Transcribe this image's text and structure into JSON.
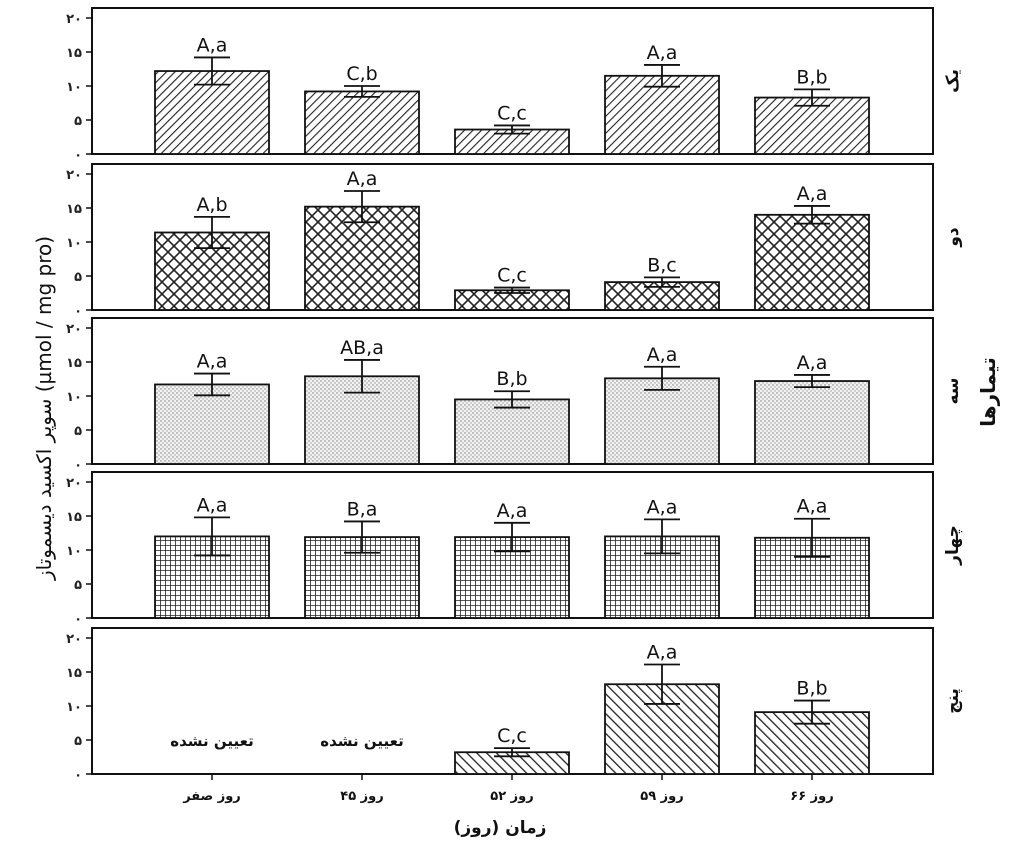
{
  "chart_data": {
    "type": "bar",
    "ylabel": "سوپر اکسید دیسموتاز (µmol / mg pro)",
    "xlabel": "زمان   (روز)",
    "group_label": "تیمارها",
    "categories": [
      "روز صفر",
      "روز ۴۵",
      "روز ۵۲",
      "روز ۵۹",
      "روز ۶۶"
    ],
    "yticks": [
      "۲۰",
      "۱۵",
      "۱۰",
      "۵",
      "۰"
    ],
    "ylim": [
      0,
      20
    ],
    "panels": [
      {
        "name": "یک",
        "pattern": "diag-fine",
        "values": [
          12.2,
          9.2,
          3.6,
          11.5,
          8.3
        ],
        "errors": [
          2.0,
          0.8,
          0.6,
          1.6,
          1.2
        ],
        "labels": [
          "A,a",
          "C,b",
          "C,c",
          "A,a",
          "B,b"
        ]
      },
      {
        "name": "دو",
        "pattern": "crosshatch",
        "values": [
          11.4,
          15.2,
          2.9,
          4.1,
          14.0
        ],
        "errors": [
          2.3,
          2.3,
          0.4,
          0.7,
          1.3
        ],
        "labels": [
          "A,b",
          "A,a",
          "C,c",
          "B,c",
          "A,a"
        ]
      },
      {
        "name": "سه",
        "pattern": "dots",
        "values": [
          11.7,
          12.9,
          9.5,
          12.6,
          12.2
        ],
        "errors": [
          1.6,
          2.4,
          1.2,
          1.7,
          0.9
        ],
        "labels": [
          "A,a",
          "AB,a",
          "B,b",
          "A,a",
          "A,a"
        ]
      },
      {
        "name": "چهار",
        "pattern": "grid",
        "values": [
          12.0,
          11.9,
          11.9,
          12.0,
          11.8
        ],
        "errors": [
          2.8,
          2.3,
          2.1,
          2.5,
          2.8
        ],
        "labels": [
          "A,a",
          "B,a",
          "A,a",
          "A,a",
          "A,a"
        ]
      },
      {
        "name": "پنج",
        "pattern": "diag-wide",
        "values": [
          null,
          null,
          3.2,
          13.2,
          9.1
        ],
        "errors": [
          null,
          null,
          0.6,
          2.9,
          1.7
        ],
        "labels": [
          "",
          "",
          "C,c",
          "A,a",
          "B,b"
        ],
        "missing_text": [
          "تعیین نشده",
          "تعیین نشده",
          "",
          "",
          ""
        ]
      }
    ]
  }
}
